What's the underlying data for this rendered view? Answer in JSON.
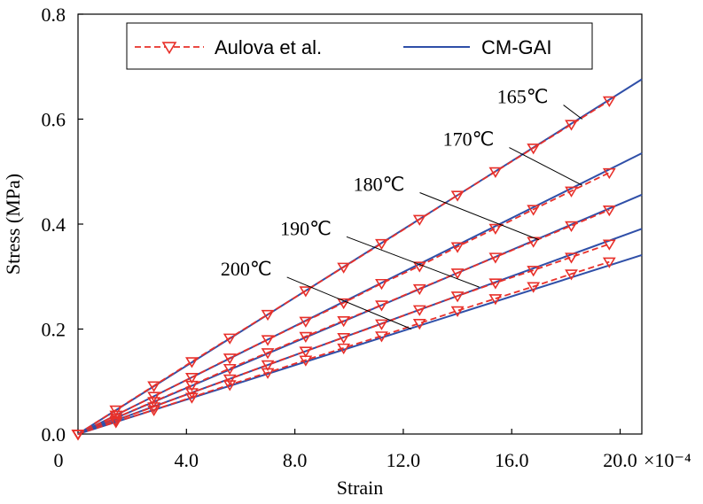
{
  "chart_data": {
    "type": "line",
    "xlabel": "Strain",
    "ylabel": "Stress (MPa)",
    "xlim": [
      0,
      20.8
    ],
    "ylim": [
      0,
      0.8
    ],
    "x_scale_note": "×10⁻⁴",
    "x_ticks": [
      {
        "value": 0,
        "label": "0"
      },
      {
        "value": 4,
        "label": "4.0"
      },
      {
        "value": 8,
        "label": "8.0"
      },
      {
        "value": 12,
        "label": "12.0"
      },
      {
        "value": 16,
        "label": "16.0"
      },
      {
        "value": 20,
        "label": "20.0"
      }
    ],
    "y_ticks": [
      {
        "value": 0,
        "label": "0.0"
      },
      {
        "value": 0.2,
        "label": "0.2"
      },
      {
        "value": 0.4,
        "label": "0.4"
      },
      {
        "value": 0.6,
        "label": "0.6"
      },
      {
        "value": 0.8,
        "label": "0.8"
      }
    ],
    "legend": {
      "position": "top-center",
      "entries": [
        {
          "label": "Aulova et al.",
          "style": "dashed-triangle",
          "color": "#e8302a"
        },
        {
          "label": "CM-GAI",
          "style": "solid",
          "color": "#2f4fa8"
        }
      ]
    },
    "colors": {
      "aulova": "#e8302a",
      "cmgai": "#2f4fa8",
      "annotation": "#000000"
    },
    "x": [
      0,
      1.4,
      2.8,
      4.2,
      5.6,
      7.0,
      8.4,
      9.8,
      11.2,
      12.6,
      14.0,
      15.4,
      16.8,
      18.2,
      19.6
    ],
    "series": [
      {
        "name": "165℃",
        "aulova": [
          0,
          0.046,
          0.092,
          0.138,
          0.183,
          0.228,
          0.273,
          0.318,
          0.363,
          0.409,
          0.455,
          0.5,
          0.545,
          0.59,
          0.635
        ],
        "cmgai_slope": 0.0325,
        "cmgai_end": [
          20.8,
          0.676
        ]
      },
      {
        "name": "170℃",
        "aulova": [
          0,
          0.036,
          0.072,
          0.108,
          0.145,
          0.18,
          0.215,
          0.25,
          0.287,
          0.32,
          0.357,
          0.392,
          0.428,
          0.463,
          0.498
        ],
        "cmgai_slope": 0.0257,
        "cmgai_end": [
          20.8,
          0.535
        ]
      },
      {
        "name": "180℃",
        "aulova": [
          0,
          0.031,
          0.062,
          0.093,
          0.125,
          0.155,
          0.186,
          0.216,
          0.246,
          0.277,
          0.307,
          0.337,
          0.367,
          0.397,
          0.427
        ],
        "cmgai_slope": 0.0219,
        "cmgai_end": [
          20.8,
          0.456
        ]
      },
      {
        "name": "190℃",
        "aulova": [
          0,
          0.026,
          0.052,
          0.079,
          0.105,
          0.132,
          0.158,
          0.184,
          0.21,
          0.237,
          0.263,
          0.288,
          0.312,
          0.337,
          0.362
        ],
        "cmgai_slope": 0.0188,
        "cmgai_end": [
          20.8,
          0.391
        ]
      },
      {
        "name": "200℃",
        "aulova": [
          0,
          0.023,
          0.046,
          0.07,
          0.094,
          0.117,
          0.141,
          0.164,
          0.187,
          0.211,
          0.235,
          0.258,
          0.281,
          0.305,
          0.328
        ],
        "cmgai_slope": 0.0164,
        "cmgai_end": [
          20.8,
          0.341
        ]
      }
    ],
    "annotations": [
      {
        "text": "165℃",
        "label_at": [
          16.6,
          0.637
        ],
        "arrow_to": [
          18.6,
          0.6
        ]
      },
      {
        "text": "170℃",
        "label_at": [
          14.6,
          0.556
        ],
        "arrow_to": [
          18.6,
          0.474
        ]
      },
      {
        "text": "180℃",
        "label_at": [
          11.3,
          0.47
        ],
        "arrow_to": [
          17.0,
          0.37
        ]
      },
      {
        "text": "190℃",
        "label_at": [
          8.6,
          0.386
        ],
        "arrow_to": [
          14.8,
          0.28
        ]
      },
      {
        "text": "200℃",
        "label_at": [
          6.4,
          0.309
        ],
        "arrow_to": [
          12.3,
          0.2
        ]
      }
    ]
  }
}
